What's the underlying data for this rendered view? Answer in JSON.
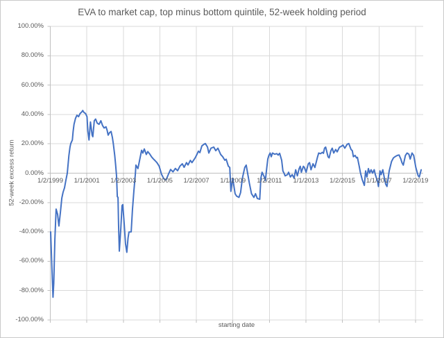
{
  "chart": {
    "title": "EVA to market cap, top minus bottom quintile, 52-week holding period",
    "y_axis_title": "52-week excess return",
    "x_axis_title": "starting date"
  },
  "colors": {
    "line": "#4472C4",
    "gridline": "#D9D9D9",
    "axis_line": "#BFBFBF",
    "text": "#595959",
    "background": "#FFFFFF",
    "border": "#C9C9C9"
  },
  "chart_data": {
    "type": "line",
    "title": "EVA to market cap, top minus bottom quintile, 52-week holding period",
    "xlabel": "starting date",
    "ylabel": "52-week excess return",
    "x_unit": "decimal_year",
    "y_unit": "percent",
    "xlim": [
      1998.98,
      2019.42
    ],
    "ylim": [
      -100,
      100
    ],
    "grid": true,
    "legend_position": "none",
    "y_ticks": [
      {
        "label": "100.00%",
        "value": 100
      },
      {
        "label": "80.00%",
        "value": 80
      },
      {
        "label": "60.00%",
        "value": 60
      },
      {
        "label": "40.00%",
        "value": 40
      },
      {
        "label": "20.00%",
        "value": 20
      },
      {
        "label": "0.00%",
        "value": 0
      },
      {
        "label": "-20.00%",
        "value": -20
      },
      {
        "label": "-40.00%",
        "value": -40
      },
      {
        "label": "-60.00%",
        "value": -60
      },
      {
        "label": "-80.00%",
        "value": -80
      },
      {
        "label": "-100.00%",
        "value": -100
      }
    ],
    "x_ticks": [
      {
        "label": "1/2/1999",
        "value": 1999.0
      },
      {
        "label": "1/1/2001",
        "value": 2001.0
      },
      {
        "label": "1/2/2003",
        "value": 2003.0
      },
      {
        "label": "1/1/2005",
        "value": 2005.0
      },
      {
        "label": "1/2/2007",
        "value": 2007.0
      },
      {
        "label": "1/1/2009",
        "value": 2009.0
      },
      {
        "label": "1/2/2011",
        "value": 2011.0
      },
      {
        "label": "1/1/2013",
        "value": 2013.0
      },
      {
        "label": "1/2/2015",
        "value": 2015.0
      },
      {
        "label": "1/1/2017",
        "value": 2017.0
      },
      {
        "label": "1/2/2019",
        "value": 2019.0
      }
    ],
    "series": [
      {
        "name": "top minus bottom quintile 52-week excess return",
        "color": "#4472C4",
        "points": [
          [
            1999.02,
            -40
          ],
          [
            1999.06,
            -55
          ],
          [
            1999.11,
            -72
          ],
          [
            1999.15,
            -84.5
          ],
          [
            1999.19,
            -75
          ],
          [
            1999.25,
            -45
          ],
          [
            1999.32,
            -24.5
          ],
          [
            1999.4,
            -28
          ],
          [
            1999.47,
            -36
          ],
          [
            1999.55,
            -27
          ],
          [
            1999.63,
            -17
          ],
          [
            1999.7,
            -13
          ],
          [
            1999.78,
            -10
          ],
          [
            1999.85,
            -5
          ],
          [
            1999.93,
            0
          ],
          [
            2000.02,
            12
          ],
          [
            2000.08,
            17.8
          ],
          [
            2000.12,
            20.2
          ],
          [
            2000.21,
            22.6
          ],
          [
            2000.25,
            28.4
          ],
          [
            2000.3,
            33.3
          ],
          [
            2000.38,
            37.3
          ],
          [
            2000.46,
            39.5
          ],
          [
            2000.55,
            38.5
          ],
          [
            2000.63,
            40.6
          ],
          [
            2000.72,
            41.7
          ],
          [
            2000.78,
            42.7
          ],
          [
            2000.84,
            41.4
          ],
          [
            2000.93,
            40.6
          ],
          [
            2001.01,
            38.5
          ],
          [
            2001.06,
            28.4
          ],
          [
            2001.12,
            22.6
          ],
          [
            2001.2,
            34.9
          ],
          [
            2001.29,
            25.9
          ],
          [
            2001.33,
            24.8
          ],
          [
            2001.41,
            35.7
          ],
          [
            2001.48,
            36.9
          ],
          [
            2001.57,
            34.1
          ],
          [
            2001.67,
            33.3
          ],
          [
            2001.77,
            35.7
          ],
          [
            2001.86,
            32.5
          ],
          [
            2001.95,
            30.8
          ],
          [
            2002.05,
            31.6
          ],
          [
            2002.11,
            29.2
          ],
          [
            2002.17,
            25.9
          ],
          [
            2002.24,
            27.5
          ],
          [
            2002.33,
            28.4
          ],
          [
            2002.4,
            24.3
          ],
          [
            2002.45,
            20.2
          ],
          [
            2002.53,
            12
          ],
          [
            2002.58,
            5.5
          ],
          [
            2002.63,
            -2
          ],
          [
            2002.67,
            -16
          ],
          [
            2002.71,
            -16.5
          ],
          [
            2002.74,
            -35
          ],
          [
            2002.78,
            -53.1
          ],
          [
            2002.86,
            -38
          ],
          [
            2002.93,
            -22.1
          ],
          [
            2002.97,
            -21.4
          ],
          [
            2003.05,
            -35
          ],
          [
            2003.12,
            -48
          ],
          [
            2003.19,
            -53.9
          ],
          [
            2003.26,
            -44
          ],
          [
            2003.31,
            -40.1
          ],
          [
            2003.43,
            -40
          ],
          [
            2003.5,
            -25
          ],
          [
            2003.58,
            -12
          ],
          [
            2003.66,
            0
          ],
          [
            2003.69,
            5.5
          ],
          [
            2003.8,
            3.1
          ],
          [
            2003.88,
            8
          ],
          [
            2004.0,
            15.6
          ],
          [
            2004.07,
            13.7
          ],
          [
            2004.15,
            16.5
          ],
          [
            2004.26,
            12.7
          ],
          [
            2004.34,
            14.7
          ],
          [
            2004.45,
            13
          ],
          [
            2004.55,
            11
          ],
          [
            2004.64,
            9.8
          ],
          [
            2004.74,
            8.5
          ],
          [
            2004.84,
            7.2
          ],
          [
            2004.96,
            4.8
          ],
          [
            2005.09,
            -0.7
          ],
          [
            2005.22,
            -3.9
          ],
          [
            2005.34,
            -4.6
          ],
          [
            2005.47,
            -0.7
          ],
          [
            2005.59,
            2.5
          ],
          [
            2005.72,
            0.9
          ],
          [
            2005.85,
            3.2
          ],
          [
            2005.97,
            1.7
          ],
          [
            2006.1,
            4.8
          ],
          [
            2006.23,
            6.4
          ],
          [
            2006.33,
            4
          ],
          [
            2006.46,
            7.2
          ],
          [
            2006.54,
            5.6
          ],
          [
            2006.67,
            8.7
          ],
          [
            2006.76,
            7.2
          ],
          [
            2006.93,
            10.3
          ],
          [
            2007.04,
            13
          ],
          [
            2007.11,
            15
          ],
          [
            2007.19,
            14
          ],
          [
            2007.3,
            18.6
          ],
          [
            2007.42,
            19.7
          ],
          [
            2007.49,
            20.2
          ],
          [
            2007.61,
            17.8
          ],
          [
            2007.68,
            13.7
          ],
          [
            2007.8,
            17
          ],
          [
            2007.95,
            17.8
          ],
          [
            2008.06,
            15.3
          ],
          [
            2008.18,
            17
          ],
          [
            2008.33,
            12.7
          ],
          [
            2008.44,
            11.2
          ],
          [
            2008.56,
            8.8
          ],
          [
            2008.63,
            9.5
          ],
          [
            2008.75,
            4.8
          ],
          [
            2008.83,
            3.9
          ],
          [
            2008.89,
            -12.4
          ],
          [
            2008.99,
            -3.4
          ],
          [
            2009.12,
            -14
          ],
          [
            2009.2,
            -15.6
          ],
          [
            2009.33,
            -16.5
          ],
          [
            2009.42,
            -13.2
          ],
          [
            2009.52,
            -3.4
          ],
          [
            2009.65,
            3.9
          ],
          [
            2009.73,
            5.5
          ],
          [
            2009.9,
            -6.7
          ],
          [
            2010.02,
            -14
          ],
          [
            2010.15,
            -16.5
          ],
          [
            2010.24,
            -14
          ],
          [
            2010.34,
            -17.3
          ],
          [
            2010.47,
            -17.8
          ],
          [
            2010.53,
            -3.4
          ],
          [
            2010.6,
            0.6
          ],
          [
            2010.72,
            -2.6
          ],
          [
            2010.78,
            -5.1
          ],
          [
            2010.85,
            3.1
          ],
          [
            2010.91,
            9.6
          ],
          [
            2010.97,
            12.1
          ],
          [
            2011.04,
            13.7
          ],
          [
            2011.1,
            11.2
          ],
          [
            2011.17,
            13.7
          ],
          [
            2011.29,
            12.9
          ],
          [
            2011.41,
            13.3
          ],
          [
            2011.48,
            12.3
          ],
          [
            2011.56,
            13.5
          ],
          [
            2011.67,
            8.8
          ],
          [
            2011.74,
            1.5
          ],
          [
            2011.8,
            0
          ],
          [
            2011.86,
            -1.8
          ],
          [
            2011.99,
            -1
          ],
          [
            2012.05,
            0.6
          ],
          [
            2012.15,
            -2.6
          ],
          [
            2012.25,
            -1
          ],
          [
            2012.35,
            -3.4
          ],
          [
            2012.44,
            2.3
          ],
          [
            2012.53,
            -1.8
          ],
          [
            2012.63,
            3.1
          ],
          [
            2012.69,
            4.7
          ],
          [
            2012.75,
            0.6
          ],
          [
            2012.86,
            4.7
          ],
          [
            2012.91,
            4
          ],
          [
            2013.01,
            0.6
          ],
          [
            2013.13,
            6.4
          ],
          [
            2013.2,
            7.2
          ],
          [
            2013.28,
            2.3
          ],
          [
            2013.39,
            6.4
          ],
          [
            2013.49,
            3.9
          ],
          [
            2013.64,
            11.2
          ],
          [
            2013.7,
            13.7
          ],
          [
            2013.8,
            13.3
          ],
          [
            2013.9,
            14.2
          ],
          [
            2013.96,
            13.5
          ],
          [
            2014.02,
            17
          ],
          [
            2014.08,
            17.8
          ],
          [
            2014.21,
            11.2
          ],
          [
            2014.27,
            10.4
          ],
          [
            2014.37,
            15.3
          ],
          [
            2014.44,
            17
          ],
          [
            2014.52,
            13.7
          ],
          [
            2014.63,
            16.1
          ],
          [
            2014.71,
            14.5
          ],
          [
            2014.84,
            17.8
          ],
          [
            2014.9,
            18
          ],
          [
            2015.03,
            19.1
          ],
          [
            2015.13,
            17
          ],
          [
            2015.26,
            19.7
          ],
          [
            2015.35,
            20.2
          ],
          [
            2015.47,
            16.1
          ],
          [
            2015.54,
            15.3
          ],
          [
            2015.6,
            11.2
          ],
          [
            2015.69,
            12.1
          ],
          [
            2015.77,
            10.4
          ],
          [
            2015.82,
            10.8
          ],
          [
            2015.92,
            4.7
          ],
          [
            2015.98,
            0.6
          ],
          [
            2016.08,
            -4.2
          ],
          [
            2016.15,
            -6.7
          ],
          [
            2016.2,
            -8.3
          ],
          [
            2016.27,
            1.5
          ],
          [
            2016.34,
            -2.6
          ],
          [
            2016.42,
            3.1
          ],
          [
            2016.49,
            0
          ],
          [
            2016.57,
            2.3
          ],
          [
            2016.65,
            0
          ],
          [
            2016.74,
            2.3
          ],
          [
            2016.8,
            -1
          ],
          [
            2016.93,
            -5.9
          ],
          [
            2016.97,
            -9.1
          ],
          [
            2017.06,
            1.5
          ],
          [
            2017.12,
            -1
          ],
          [
            2017.21,
            2.3
          ],
          [
            2017.31,
            -4.2
          ],
          [
            2017.37,
            -7.5
          ],
          [
            2017.44,
            -9.1
          ],
          [
            2017.56,
            1.5
          ],
          [
            2017.69,
            8
          ],
          [
            2017.79,
            10.4
          ],
          [
            2017.88,
            11.2
          ],
          [
            2018.01,
            12.1
          ],
          [
            2018.1,
            12.4
          ],
          [
            2018.2,
            9.6
          ],
          [
            2018.26,
            7.2
          ],
          [
            2018.33,
            5.5
          ],
          [
            2018.45,
            12.1
          ],
          [
            2018.54,
            13.7
          ],
          [
            2018.64,
            12.9
          ],
          [
            2018.71,
            9.6
          ],
          [
            2018.81,
            13.7
          ],
          [
            2018.9,
            12.1
          ],
          [
            2019.02,
            3.9
          ],
          [
            2019.09,
            0.6
          ],
          [
            2019.15,
            -1.8
          ],
          [
            2019.21,
            -2.6
          ],
          [
            2019.31,
            2.3
          ]
        ]
      }
    ]
  }
}
